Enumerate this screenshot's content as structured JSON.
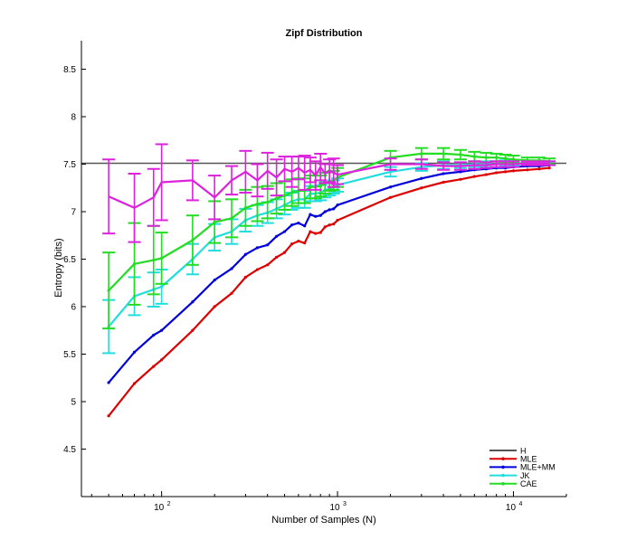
{
  "chart_data": {
    "type": "line",
    "title": "Zipf Distribution",
    "xlabel": "Number of Samples (N)",
    "ylabel": "Entropy (bits)",
    "xscale": "log",
    "xlim": [
      35,
      20000
    ],
    "ylim": [
      4.0,
      8.8
    ],
    "grid": false,
    "legend_position": "bottom-right",
    "xticks": [
      {
        "value": 100,
        "label": "10",
        "exp": "2"
      },
      {
        "value": 1000,
        "label": "10",
        "exp": "3"
      },
      {
        "value": 10000,
        "label": "10",
        "exp": "4"
      }
    ],
    "yticks": [
      {
        "value": 4.5,
        "label": "4.5"
      },
      {
        "value": 5,
        "label": "5"
      },
      {
        "value": 5.5,
        "label": "5.5"
      },
      {
        "value": 6,
        "label": "6"
      },
      {
        "value": 6.5,
        "label": "6.5"
      },
      {
        "value": 7,
        "label": "7"
      },
      {
        "value": 7.5,
        "label": "7.5"
      },
      {
        "value": 8,
        "label": "8"
      },
      {
        "value": 8.5,
        "label": "8.5"
      }
    ],
    "hline": {
      "name": "H",
      "value": 7.51,
      "color": "#555555"
    },
    "series": [
      {
        "name": "MLE",
        "color": "#dd0000",
        "marker": true,
        "x": [
          50,
          70,
          90,
          100,
          150,
          200,
          250,
          300,
          350,
          400,
          450,
          500,
          550,
          600,
          650,
          700,
          750,
          800,
          850,
          900,
          950,
          1000,
          2000,
          3000,
          4000,
          5000,
          6000,
          7000,
          8000,
          9000,
          10000,
          12000,
          14000,
          16000
        ],
        "y": [
          4.85,
          5.19,
          5.37,
          5.44,
          5.75,
          6.0,
          6.14,
          6.31,
          6.39,
          6.44,
          6.52,
          6.57,
          6.66,
          6.69,
          6.67,
          6.79,
          6.77,
          6.78,
          6.84,
          6.86,
          6.87,
          6.91,
          7.15,
          7.25,
          7.31,
          7.34,
          7.37,
          7.39,
          7.41,
          7.42,
          7.43,
          7.44,
          7.45,
          7.46
        ]
      },
      {
        "name": "MLE+MM",
        "color": "#0000dd",
        "marker": true,
        "x": [
          50,
          70,
          90,
          100,
          150,
          200,
          250,
          300,
          350,
          400,
          450,
          500,
          550,
          600,
          650,
          700,
          750,
          800,
          850,
          900,
          950,
          1000,
          2000,
          3000,
          4000,
          5000,
          6000,
          7000,
          8000,
          9000,
          10000,
          12000,
          14000,
          16000
        ],
        "y": [
          5.2,
          5.52,
          5.7,
          5.75,
          6.05,
          6.28,
          6.4,
          6.55,
          6.62,
          6.65,
          6.74,
          6.79,
          6.86,
          6.88,
          6.85,
          6.97,
          6.95,
          6.96,
          7.0,
          7.02,
          7.03,
          7.07,
          7.26,
          7.35,
          7.4,
          7.42,
          7.44,
          7.45,
          7.46,
          7.46,
          7.47,
          7.48,
          7.48,
          7.49
        ]
      },
      {
        "name": "JK",
        "color": "#22dddd",
        "marker": true,
        "x": [
          50,
          70,
          90,
          100,
          150,
          200,
          250,
          300,
          350,
          400,
          450,
          500,
          550,
          600,
          650,
          700,
          750,
          800,
          850,
          900,
          950,
          1000,
          2000,
          3000,
          4000,
          5000,
          6000,
          7000,
          8000,
          9000,
          10000,
          12000,
          14000,
          16000
        ],
        "y": [
          5.79,
          6.11,
          6.18,
          6.21,
          6.5,
          6.73,
          6.79,
          6.91,
          6.96,
          6.99,
          7.03,
          7.07,
          7.11,
          7.13,
          7.13,
          7.19,
          7.19,
          7.2,
          7.23,
          7.24,
          7.26,
          7.28,
          7.42,
          7.47,
          7.49,
          7.49,
          7.5,
          7.5,
          7.5,
          7.51,
          7.51,
          7.51,
          7.51,
          7.51
        ],
        "err": [
          0.28,
          0.2,
          0.18,
          0.18,
          0.16,
          0.14,
          0.13,
          0.12,
          0.11,
          0.11,
          0.1,
          0.1,
          0.09,
          0.09,
          0.09,
          0.08,
          0.08,
          0.08,
          0.08,
          0.07,
          0.07,
          0.07,
          0.05,
          0.04,
          0.04,
          0.03,
          0.03,
          0.03,
          0.03,
          0.03,
          0.02,
          0.02,
          0.02,
          0.02
        ]
      },
      {
        "name": "CAE",
        "color": "#22dd22",
        "marker": true,
        "x": [
          50,
          70,
          90,
          100,
          150,
          200,
          250,
          300,
          350,
          400,
          450,
          500,
          550,
          600,
          650,
          700,
          750,
          800,
          850,
          900,
          950,
          1000,
          2000,
          3000,
          4000,
          5000,
          6000,
          7000,
          8000,
          9000,
          10000,
          12000,
          14000,
          16000
        ],
        "y": [
          6.17,
          6.45,
          6.49,
          6.51,
          6.7,
          6.89,
          6.93,
          7.04,
          7.08,
          7.1,
          7.14,
          7.17,
          7.2,
          7.22,
          7.22,
          7.26,
          7.26,
          7.27,
          7.3,
          7.32,
          7.33,
          7.36,
          7.57,
          7.61,
          7.61,
          7.6,
          7.58,
          7.57,
          7.57,
          7.56,
          7.55,
          7.54,
          7.54,
          7.53
        ],
        "err": [
          0.4,
          0.43,
          0.36,
          0.27,
          0.26,
          0.22,
          0.2,
          0.19,
          0.18,
          0.17,
          0.16,
          0.15,
          0.14,
          0.13,
          0.13,
          0.12,
          0.12,
          0.11,
          0.11,
          0.1,
          0.1,
          0.1,
          0.07,
          0.06,
          0.06,
          0.05,
          0.05,
          0.05,
          0.04,
          0.04,
          0.04,
          0.03,
          0.03,
          0.03
        ]
      },
      {
        "name": "",
        "color": "#dd22dd",
        "marker": false,
        "x": [
          50,
          70,
          90,
          100,
          150,
          200,
          250,
          300,
          350,
          400,
          450,
          500,
          550,
          600,
          650,
          700,
          750,
          800,
          850,
          900,
          950,
          1000,
          2000,
          3000,
          4000,
          5000,
          6000,
          7000,
          8000,
          9000,
          10000,
          12000,
          14000,
          16000
        ],
        "y": [
          7.16,
          7.04,
          7.15,
          7.31,
          7.33,
          7.15,
          7.33,
          7.42,
          7.33,
          7.43,
          7.36,
          7.45,
          7.42,
          7.46,
          7.41,
          7.44,
          7.38,
          7.47,
          7.4,
          7.43,
          7.41,
          7.39,
          7.5,
          7.5,
          7.48,
          7.48,
          7.49,
          7.49,
          7.5,
          7.5,
          7.5,
          7.51,
          7.51,
          7.51
        ],
        "err": [
          0.39,
          0.36,
          0.3,
          0.4,
          0.21,
          0.23,
          0.15,
          0.22,
          0.17,
          0.19,
          0.19,
          0.13,
          0.16,
          0.12,
          0.18,
          0.13,
          0.15,
          0.14,
          0.1,
          0.12,
          0.15,
          0.1,
          0.06,
          0.05,
          0.04,
          0.04,
          0.04,
          0.03,
          0.03,
          0.03,
          0.03,
          0.02,
          0.02,
          0.02
        ]
      }
    ]
  }
}
